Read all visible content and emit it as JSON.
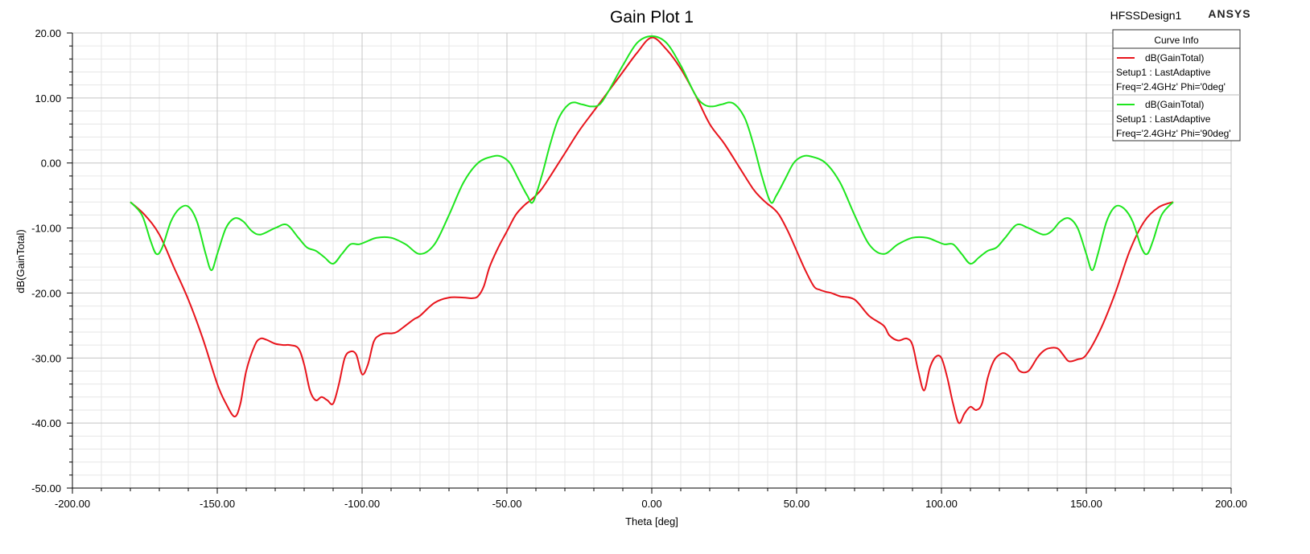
{
  "header": {
    "design_name": "HFSSDesign1",
    "brand": "ANSYS"
  },
  "legend": {
    "title": "Curve Info",
    "entries": [
      {
        "name": "dB(GainTotal)",
        "line1": "Setup1 : LastAdaptive",
        "line2": "Freq='2.4GHz' Phi='0deg'",
        "color": "#e8141c"
      },
      {
        "name": "dB(GainTotal)",
        "line1": "Setup1 : LastAdaptive",
        "line2": "Freq='2.4GHz' Phi='90deg'",
        "color": "#1ee61e"
      }
    ]
  },
  "chart_data": {
    "type": "line",
    "title": "Gain Plot 1",
    "xlabel": "Theta [deg]",
    "ylabel": "dB(GainTotal)",
    "xlim": [
      -200,
      200
    ],
    "ylim": [
      -50,
      20
    ],
    "xticks": [
      -200,
      -150,
      -100,
      -50,
      0,
      50,
      100,
      150,
      200
    ],
    "yticks": [
      20,
      10,
      0,
      -10,
      -20,
      -30,
      -40,
      -50
    ],
    "xtick_labels": [
      "-200.00",
      "-150.00",
      "-100.00",
      "-50.00",
      "0.00",
      "50.00",
      "100.00",
      "150.00",
      "200.00"
    ],
    "ytick_labels": [
      "20.00",
      "10.00",
      "0.00",
      "-10.00",
      "-20.00",
      "-30.00",
      "-40.00",
      "-50.00"
    ],
    "grid": true,
    "legend_position": "top-right",
    "series": [
      {
        "name": "dB(GainTotal) Setup1 : LastAdaptive Freq='2.4GHz' Phi='0deg'",
        "color": "#e8141c",
        "x": [
          -180,
          -175,
          -170,
          -165,
          -160,
          -155,
          -150,
          -147,
          -144,
          -142,
          -140,
          -137,
          -135,
          -133,
          -130,
          -127,
          -125,
          -122,
          -120,
          -118,
          -116,
          -114,
          -112,
          -110,
          -108,
          -106,
          -104,
          -102,
          -100,
          -98,
          -96,
          -94,
          -92,
          -90,
          -88,
          -85,
          -82,
          -80,
          -75,
          -70,
          -65,
          -62,
          -60,
          -58,
          -56,
          -53,
          -50,
          -47,
          -44,
          -42,
          -40,
          -38,
          -35,
          -30,
          -25,
          -20,
          -15,
          -10,
          -5,
          0,
          5,
          10,
          15,
          20,
          25,
          30,
          35,
          38,
          40,
          42,
          44,
          47,
          50,
          53,
          56,
          58,
          60,
          62,
          65,
          70,
          75,
          80,
          82,
          85,
          88,
          90,
          92,
          94,
          96,
          98,
          100,
          102,
          104,
          106,
          108,
          110,
          112,
          114,
          116,
          118,
          120,
          122,
          125,
          127,
          130,
          133,
          135,
          137,
          140,
          142,
          144,
          147,
          150,
          155,
          160,
          165,
          170,
          175,
          180
        ],
        "y": [
          -6,
          -8,
          -11,
          -16,
          -21,
          -27,
          -34,
          -37,
          -39,
          -37,
          -32,
          -28,
          -27,
          -27.2,
          -27.8,
          -28,
          -28,
          -28.5,
          -31,
          -35,
          -36.5,
          -36,
          -36.5,
          -37,
          -34,
          -30,
          -29,
          -29.5,
          -32.5,
          -31,
          -27.5,
          -26.5,
          -26.2,
          -26.2,
          -26,
          -25,
          -24,
          -23.5,
          -21.5,
          -20.7,
          -20.7,
          -20.8,
          -20.5,
          -19,
          -16,
          -13,
          -10.5,
          -8,
          -6.5,
          -5.8,
          -5,
          -4,
          -2,
          1.5,
          5,
          8,
          11,
          14,
          17,
          19.3,
          17.5,
          14.5,
          10.5,
          6,
          3,
          -0.5,
          -4,
          -5.5,
          -6.3,
          -7,
          -8,
          -10.5,
          -13.5,
          -16.5,
          -19,
          -19.5,
          -19.8,
          -20,
          -20.5,
          -21,
          -23.5,
          -25,
          -26.5,
          -27.3,
          -27,
          -28,
          -32,
          -35,
          -31.5,
          -29.8,
          -30,
          -33,
          -37,
          -40,
          -38.5,
          -37.5,
          -38,
          -37,
          -33,
          -30.5,
          -29.5,
          -29.3,
          -30.5,
          -32,
          -32,
          -30,
          -29,
          -28.5,
          -28.5,
          -29.5,
          -30.5,
          -30.2,
          -29.5,
          -25.5,
          -20,
          -13.5,
          -9,
          -6.8,
          -6
        ]
      },
      {
        "name": "dB(GainTotal) Setup1 : LastAdaptive Freq='2.4GHz' Phi='90deg'",
        "color": "#1ee61e",
        "x": [
          -180,
          -176,
          -173,
          -171,
          -169,
          -166,
          -163,
          -160,
          -157,
          -154,
          -152,
          -150,
          -147,
          -144,
          -141,
          -138,
          -135,
          -130,
          -126,
          -122,
          -119,
          -116,
          -113,
          -110,
          -107,
          -104,
          -101,
          -98,
          -95,
          -90,
          -85,
          -80,
          -75,
          -70,
          -65,
          -60,
          -55,
          -52,
          -49,
          -46,
          -43,
          -41,
          -38,
          -35,
          -32,
          -28,
          -24,
          -21,
          -18,
          -15,
          -10,
          -5,
          0,
          5,
          10,
          15,
          18,
          21,
          24,
          28,
          32,
          35,
          38,
          41,
          43,
          46,
          49,
          52,
          55,
          60,
          65,
          70,
          75,
          80,
          85,
          90,
          95,
          98,
          101,
          104,
          107,
          110,
          113,
          116,
          119,
          122,
          126,
          130,
          135,
          138,
          141,
          144,
          147,
          150,
          152,
          154,
          157,
          160,
          163,
          166,
          169,
          171,
          173,
          176,
          180
        ],
        "y": [
          -6,
          -8,
          -12,
          -14,
          -13,
          -9,
          -7,
          -6.7,
          -9,
          -14,
          -16.5,
          -14,
          -10,
          -8.5,
          -9,
          -10.5,
          -11,
          -10,
          -9.5,
          -11.5,
          -13,
          -13.5,
          -14.5,
          -15.5,
          -14,
          -12.5,
          -12.5,
          -12,
          -11.5,
          -11.5,
          -12.5,
          -14,
          -12.5,
          -8,
          -3,
          0,
          1,
          1,
          0,
          -2.5,
          -5,
          -6,
          -2,
          3,
          7,
          9.2,
          9,
          8.7,
          9,
          11,
          15,
          18.5,
          19.5,
          18.5,
          15,
          10.5,
          9,
          8.7,
          9,
          9.2,
          7,
          3,
          -2,
          -6,
          -5,
          -2.5,
          0,
          1,
          1,
          0,
          -3,
          -8,
          -12.5,
          -14,
          -12.5,
          -11.5,
          -11.5,
          -12,
          -12.5,
          -12.5,
          -14,
          -15.5,
          -14.5,
          -13.5,
          -13,
          -11.5,
          -9.5,
          -10,
          -11,
          -10.5,
          -9,
          -8.5,
          -10,
          -14,
          -16.5,
          -14,
          -9,
          -6.7,
          -7,
          -9,
          -13,
          -14,
          -12,
          -8,
          -6
        ]
      }
    ]
  }
}
